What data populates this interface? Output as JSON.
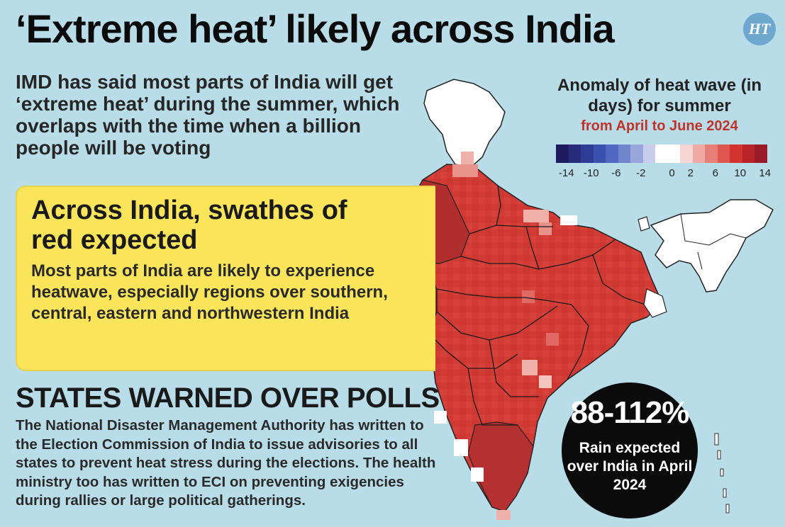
{
  "title": "‘Extreme heat’ likely across India",
  "logo": "HT",
  "intro": "IMD has said most parts of India will get ‘extreme heat’ during the summer, which overlaps with the time when a billion people will be voting",
  "legend": {
    "title": "Anomaly of heat wave (in days) for summer",
    "subtitle": "from April to June 2024",
    "ticks": [
      "-14",
      "-10",
      "-6",
      "-2",
      "0",
      "2",
      "6",
      "10",
      "14"
    ],
    "colors": [
      "#1e1b5e",
      "#262b7a",
      "#2e3c94",
      "#3a51ad",
      "#5068c0",
      "#7185cc",
      "#99a6dc",
      "#c7cdea",
      "#ffffff",
      "#ffffff",
      "#f7d5d2",
      "#efaaa5",
      "#e77f79",
      "#df5650",
      "#d4342f",
      "#b8242a",
      "#981b27"
    ]
  },
  "callout": {
    "heading": "Across India, swathes of red expected",
    "body": "Most parts of India are likely to experience heatwave, especially regions over southern, central, eastern and northwestern India"
  },
  "states": {
    "heading": "STATES WARNED OVER POLLS",
    "body": "The National Disaster Management Authority has written to the Election Commission of India to issue advisories to all states to prevent heat stress during the elections. The health ministry too has written to ECI on preventing exigencies during rallies or large political gatherings."
  },
  "rain": {
    "value": "88-112%",
    "label": "Rain expected over India in April 2024"
  },
  "map_colors": {
    "dark": "#a82a2a",
    "mid": "#d13b34",
    "light": "#e06a63",
    "pale": "#f0b0aa",
    "white": "#ffffff"
  }
}
